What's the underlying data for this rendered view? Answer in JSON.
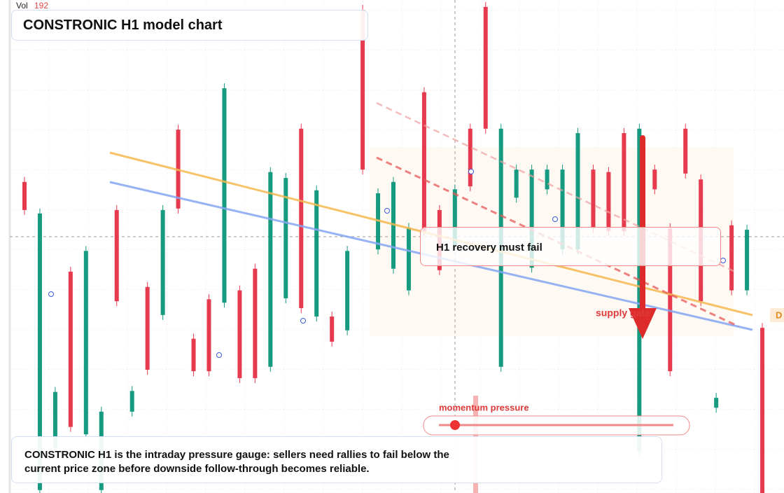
{
  "chart_data": {
    "type": "candlestick",
    "title": "CONSTRONIC H1 model chart",
    "volume_label": "Vol",
    "volume_value": 192,
    "categories": [
      null,
      null,
      null,
      null,
      null,
      null,
      null,
      null,
      null,
      null,
      null,
      null,
      null,
      null,
      null,
      null,
      null,
      null,
      null,
      null,
      null,
      null,
      null,
      null,
      null,
      null,
      null,
      null,
      null,
      null,
      null,
      null,
      null,
      null,
      null,
      null,
      null,
      null,
      null,
      null,
      null,
      null,
      null,
      null,
      null,
      null,
      null,
      null,
      null
    ],
    "open": [
      63.1,
      0.6,
      9.1,
      44.9,
      11.9,
      0.6,
      57.4,
      16.5,
      41.8,
      36.1,
      73.7,
      31.3,
      39.3,
      38.6,
      41.1,
      45.5,
      25.6,
      39.5,
      73.9,
      35.8,
      35.8,
      33,
      98,
      49.4,
      45.5,
      41.1,
      81.3,
      57.4,
      50.3,
      73.9,
      98.6,
      25.6,
      59.9,
      45.7,
      61.6,
      49.4,
      49.4,
      65.6,
      65.1,
      73,
      8.4,
      65.6,
      53.7,
      73.9,
      63.6,
      17.3,
      54.3,
      41.1,
      33.5
    ],
    "high": [
      64.1,
      57.7,
      21.5,
      45.9,
      50.1,
      17.5,
      58.4,
      21.7,
      42.8,
      58.4,
      74.7,
      32.3,
      40.3,
      83.1,
      42.1,
      46.5,
      66.1,
      64.9,
      74.9,
      62.4,
      36.8,
      50.1,
      99,
      61.8,
      64.1,
      54.8,
      82.3,
      58.4,
      62.6,
      74.9,
      99.6,
      74.9,
      66.6,
      66.6,
      66.6,
      66.6,
      74,
      66.6,
      66.1,
      74,
      74.9,
      66.6,
      54.7,
      74.9,
      64.6,
      20.3,
      55.3,
      54.4,
      34.5
    ],
    "low": [
      56.4,
      0,
      8.1,
      12.4,
      10.9,
      0,
      37.9,
      15.5,
      24,
      35.1,
      56.7,
      23.7,
      23.7,
      37.6,
      22.3,
      22.3,
      24.6,
      38.5,
      36.5,
      34.8,
      29.7,
      32,
      64.6,
      48.4,
      44.5,
      40.1,
      52.1,
      44.2,
      49.3,
      61.2,
      72.9,
      24.6,
      58.9,
      44.7,
      60.6,
      48.4,
      48.4,
      52.7,
      52.1,
      52.1,
      7.4,
      60.6,
      23.7,
      63.8,
      37.9,
      16.3,
      40.1,
      40.1,
      0
    ],
    "close": [
      57.4,
      56.7,
      20.5,
      13.4,
      49.1,
      16.5,
      38.9,
      20.7,
      25,
      57.4,
      57.7,
      24.7,
      24.7,
      82.1,
      23.3,
      23.3,
      65.1,
      63.9,
      37.5,
      61.4,
      30.7,
      49.1,
      65.6,
      60.8,
      63.1,
      53.8,
      53.1,
      45.2,
      61.6,
      62.2,
      73.9,
      73.9,
      65.6,
      65.6,
      65.6,
      65.6,
      73,
      53.7,
      53.1,
      53.1,
      73.9,
      61.6,
      24.7,
      64.8,
      38.9,
      19.3,
      41.1,
      53.4,
      0
    ],
    "up_color": "#169a80",
    "down_color": "#e63a4f",
    "ylim": [
      0,
      100
    ],
    "grid": true,
    "callout": "H1 recovery must fail",
    "zone_label": "supply gate",
    "edge_label": "D",
    "slider_label": "momentum pressure",
    "footer": "CONSTRONIC H1 is the intraday pressure gauge: sellers need rallies to fail below the current price zone before downside follow-through becomes reliable."
  }
}
